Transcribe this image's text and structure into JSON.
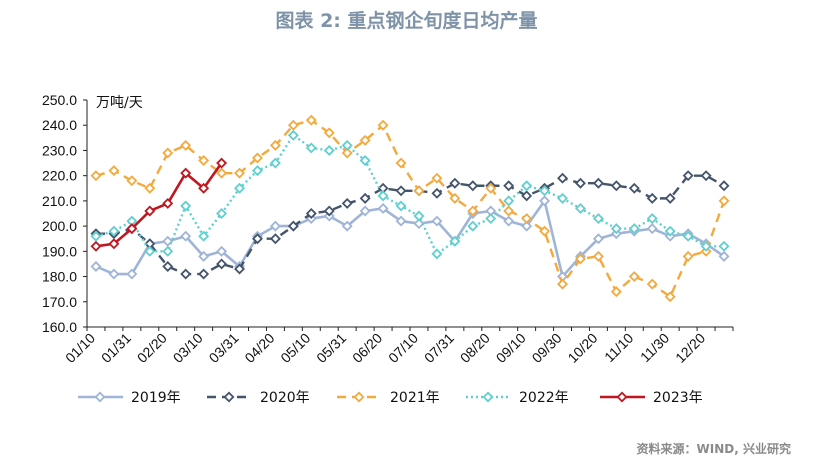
{
  "title": "图表 2:    重点钢企旬度日均产量",
  "source": "资料来源：WIND, 兴业研究",
  "chart_data": {
    "type": "line",
    "title": "图表 2:    重点钢企旬度日均产量",
    "ylabel": "万吨/天",
    "ylim": [
      160,
      250
    ],
    "yticks": [
      "160.0",
      "170.0",
      "180.0",
      "190.0",
      "200.0",
      "210.0",
      "220.0",
      "230.0",
      "240.0",
      "250.0"
    ],
    "xticks": [
      "01/10",
      "01/31",
      "02/20",
      "03/10",
      "03/31",
      "04/20",
      "05/10",
      "05/31",
      "06/20",
      "07/10",
      "07/31",
      "08/20",
      "09/10",
      "09/30",
      "10/20",
      "11/10",
      "11/30",
      "12/20"
    ],
    "legend": "bottom",
    "series": [
      {
        "name": "2019年",
        "color": "#9fb4d6",
        "style": "solid",
        "marker": "diamond",
        "values": [
          184,
          181,
          181,
          193,
          194,
          196,
          188,
          190,
          184,
          196,
          200,
          200,
          203,
          204,
          200,
          206,
          207,
          202,
          201,
          202,
          194,
          205,
          206,
          202,
          200,
          210,
          180,
          188,
          195,
          197,
          198,
          199,
          196,
          197,
          193,
          188
        ]
      },
      {
        "name": "2020年",
        "color": "#44546a",
        "style": "dash",
        "marker": "diamond",
        "values": [
          197,
          197,
          199,
          193,
          184,
          181,
          181,
          185,
          183,
          195,
          195,
          200,
          205,
          206,
          209,
          211,
          215,
          214,
          214,
          213,
          217,
          216,
          216,
          216,
          212,
          215,
          219,
          217,
          217,
          216,
          215,
          211,
          211,
          220,
          220,
          216
        ]
      },
      {
        "name": "2021年",
        "color": "#f4a93c",
        "style": "dash",
        "marker": "diamond",
        "values": [
          220,
          222,
          218,
          215,
          229,
          232,
          226,
          221,
          221,
          227,
          232,
          240,
          242,
          237,
          229,
          234,
          240,
          225,
          214,
          219,
          211,
          206,
          215,
          206,
          203,
          198,
          177,
          187,
          188,
          174,
          180,
          177,
          172,
          188,
          190,
          210
        ]
      },
      {
        "name": "2022年",
        "color": "#5fcfcf",
        "style": "dot",
        "marker": "diamond",
        "values": [
          196,
          198,
          202,
          190,
          190,
          208,
          196,
          205,
          215,
          222,
          225,
          236,
          231,
          230,
          232,
          226,
          212,
          208,
          204,
          189,
          194,
          200,
          203,
          210,
          216,
          214,
          211,
          207,
          203,
          199,
          199,
          203,
          198,
          196,
          192,
          192
        ]
      },
      {
        "name": "2023年",
        "color": "#c0161f",
        "style": "solid",
        "marker": "diamond",
        "values": [
          192,
          193,
          199,
          206,
          209,
          221,
          215,
          225
        ]
      }
    ]
  }
}
